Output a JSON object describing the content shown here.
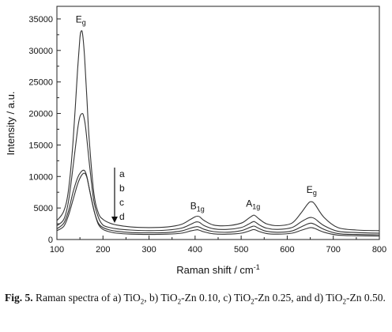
{
  "chart_data": {
    "type": "line",
    "xlabel": "Raman shift / cm",
    "xlabel_sup": "-1",
    "ylabel": "Intensity / a.u.",
    "xlim": [
      100,
      800
    ],
    "ylim": [
      0,
      37000
    ],
    "xticks": [
      100,
      200,
      300,
      400,
      500,
      600,
      700,
      800
    ],
    "yticks": [
      0,
      5000,
      10000,
      15000,
      20000,
      25000,
      30000,
      35000
    ],
    "series": [
      {
        "name": "a",
        "x": [
          100,
          115,
          125,
          135,
          145,
          150,
          153,
          156,
          160,
          165,
          170,
          180,
          190,
          200,
          215,
          230,
          260,
          300,
          340,
          370,
          390,
          400,
          405,
          410,
          420,
          440,
          470,
          500,
          515,
          525,
          530,
          540,
          555,
          580,
          610,
          630,
          645,
          652,
          660,
          680,
          710,
          750,
          800
        ],
        "y": [
          3000,
          4500,
          7800,
          15500,
          27000,
          32000,
          33100,
          32500,
          29000,
          22500,
          16000,
          7500,
          4200,
          3200,
          2600,
          2300,
          2000,
          1900,
          2000,
          2400,
          3200,
          3600,
          3700,
          3600,
          3000,
          2300,
          2200,
          2600,
          3300,
          3800,
          3800,
          3200,
          2500,
          2200,
          2600,
          4200,
          5700,
          6000,
          5600,
          3500,
          1900,
          1500,
          1400
        ]
      },
      {
        "name": "b",
        "x": [
          100,
          115,
          125,
          135,
          145,
          150,
          155,
          158,
          162,
          167,
          172,
          180,
          190,
          200,
          215,
          230,
          260,
          300,
          340,
          370,
          390,
          400,
          405,
          410,
          420,
          440,
          470,
          500,
          515,
          525,
          530,
          540,
          555,
          580,
          610,
          630,
          645,
          652,
          660,
          680,
          710,
          750,
          800
        ],
        "y": [
          2200,
          3200,
          6000,
          11500,
          17500,
          19500,
          20000,
          19600,
          18000,
          14500,
          11000,
          6200,
          3500,
          2300,
          1900,
          1700,
          1500,
          1400,
          1500,
          1800,
          2400,
          2750,
          2800,
          2700,
          2200,
          1700,
          1600,
          1900,
          2400,
          2800,
          2800,
          2300,
          1800,
          1600,
          1900,
          2800,
          3400,
          3500,
          3300,
          2200,
          1300,
          1100,
          1000
        ]
      },
      {
        "name": "c",
        "x": [
          100,
          115,
          125,
          135,
          145,
          152,
          158,
          162,
          166,
          170,
          175,
          182,
          190,
          200,
          215,
          230,
          260,
          300,
          340,
          370,
          390,
          400,
          405,
          410,
          420,
          440,
          470,
          500,
          515,
          525,
          530,
          540,
          555,
          580,
          610,
          630,
          645,
          652,
          660,
          680,
          710,
          750,
          800
        ],
        "y": [
          1700,
          2600,
          4500,
          7500,
          9800,
          10700,
          11000,
          10700,
          9700,
          8200,
          6400,
          4200,
          2600,
          1900,
          1500,
          1300,
          1100,
          1050,
          1100,
          1350,
          1800,
          2000,
          2050,
          1950,
          1600,
          1250,
          1150,
          1400,
          1800,
          2100,
          2100,
          1700,
          1300,
          1150,
          1350,
          2000,
          2500,
          2600,
          2400,
          1600,
          950,
          800,
          750
        ]
      },
      {
        "name": "d",
        "x": [
          100,
          115,
          125,
          135,
          145,
          152,
          158,
          162,
          166,
          170,
          175,
          182,
          190,
          200,
          215,
          230,
          260,
          300,
          340,
          370,
          390,
          400,
          405,
          410,
          420,
          440,
          470,
          500,
          515,
          525,
          530,
          540,
          555,
          580,
          610,
          630,
          645,
          652,
          660,
          680,
          710,
          750,
          800
        ],
        "y": [
          1400,
          2100,
          3800,
          6300,
          8800,
          10000,
          10500,
          10400,
          9600,
          8200,
          6500,
          4200,
          2400,
          1600,
          1200,
          1000,
          850,
          800,
          850,
          1000,
          1350,
          1500,
          1550,
          1450,
          1200,
          900,
          850,
          1000,
          1300,
          1550,
          1550,
          1250,
          950,
          850,
          1000,
          1450,
          1800,
          1900,
          1750,
          1150,
          700,
          600,
          550
        ]
      }
    ],
    "annotations": [
      {
        "main": "E",
        "sub": "g",
        "x": 152,
        "y": 34400
      },
      {
        "main": "B",
        "sub": "1g",
        "x": 405,
        "y": 4800
      },
      {
        "main": "A",
        "sub": "1g",
        "x": 526,
        "y": 5200
      },
      {
        "main": "E",
        "sub": "g",
        "x": 653,
        "y": 7400
      }
    ],
    "series_labels": [
      "a",
      "b",
      "c",
      "d"
    ]
  },
  "caption": {
    "fig": "Fig. 5.",
    "t1": " Raman spectra of a) TiO",
    "s1": "2",
    "t2": ", b) TiO",
    "s2": "2",
    "t3": "-Zn 0.10, c) TiO",
    "s3": "2",
    "t4": "-Zn 0.25, and d) TiO",
    "s4": "2",
    "t5": "-Zn 0.50."
  }
}
